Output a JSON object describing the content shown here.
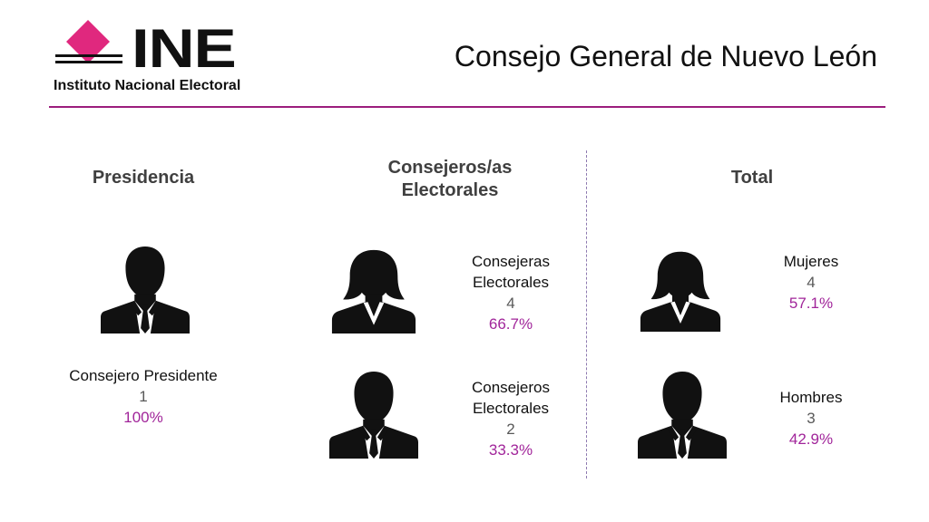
{
  "logo": {
    "wordmark": "INE",
    "subtitle": "Instituto Nacional Electoral",
    "accent_color": "#e0287e"
  },
  "header": {
    "title": "Consejo General de Nuevo León",
    "rule_color": "#9c1e7d"
  },
  "sections": {
    "presidencia": {
      "title": "Presidencia",
      "groups": [
        {
          "icon": "man-icon",
          "label": "Consejero Presidente",
          "count": "1",
          "percent": "100%"
        }
      ]
    },
    "consejeros": {
      "title_line1": "Consejeros/as",
      "title_line2": "Electorales",
      "groups": [
        {
          "icon": "woman-icon",
          "label_line1": "Consejeras",
          "label_line2": "Electorales",
          "count": "4",
          "percent": "66.7%"
        },
        {
          "icon": "man-icon",
          "label_line1": "Consejeros",
          "label_line2": "Electorales",
          "count": "2",
          "percent": "33.3%"
        }
      ]
    },
    "total": {
      "title": "Total",
      "groups": [
        {
          "icon": "woman-icon",
          "label": "Mujeres",
          "count": "4",
          "percent": "57.1%"
        },
        {
          "icon": "man-icon",
          "label": "Hombres",
          "count": "3",
          "percent": "42.9%"
        }
      ]
    }
  },
  "colors": {
    "percent": "#a1259a",
    "count": "#595959",
    "divider": "#8e7ab0"
  }
}
